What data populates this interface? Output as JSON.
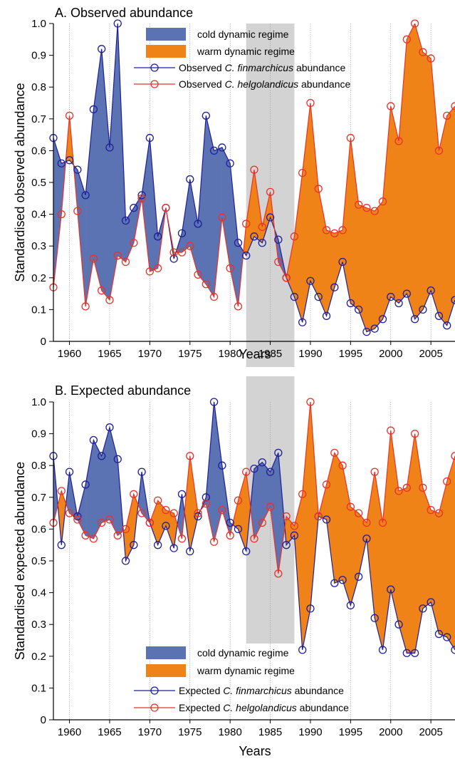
{
  "colors": {
    "cold_regime": "#5b73b3",
    "warm_regime": "#ef8318",
    "finmarchicus_line": "#1f1f9a",
    "helgolandicus_line": "#e8322a",
    "shade_band": "#d3d3d3"
  },
  "chart_data": [
    {
      "type": "area",
      "title": "A. Observed abundance",
      "xlabel": "Years",
      "ylabel": "Standardised observed abundance",
      "xlim": [
        1958,
        2008
      ],
      "ylim": [
        0,
        1
      ],
      "x_ticks": [
        "1960",
        "1965",
        "1970",
        "1975",
        "1980",
        "1985",
        "1990",
        "1995",
        "2000",
        "2005"
      ],
      "y_ticks": [
        "0",
        "0.1",
        "0.2",
        "0.3",
        "0.4",
        "0.5",
        "0.6",
        "0.7",
        "0.8",
        "0.9",
        "1.0"
      ],
      "shaded_period": [
        1982,
        1988
      ],
      "legend": {
        "position": "top-right",
        "cold_label": "cold dynamic regime",
        "warm_label": "warm dynamic regime",
        "fin_prefix": "Observed ",
        "fin_species": "C. finmarchicus",
        "fin_suffix": " abundance",
        "helg_prefix": "Observed ",
        "helg_species": "C. helgolandicus",
        "helg_suffix": " abundance"
      },
      "x": [
        1958,
        1959,
        1960,
        1961,
        1962,
        1963,
        1964,
        1965,
        1966,
        1967,
        1968,
        1969,
        1970,
        1971,
        1972,
        1973,
        1974,
        1975,
        1976,
        1977,
        1978,
        1979,
        1980,
        1981,
        1982,
        1983,
        1984,
        1985,
        1986,
        1987,
        1988,
        1989,
        1990,
        1991,
        1992,
        1993,
        1994,
        1995,
        1996,
        1997,
        1998,
        1999,
        2000,
        2001,
        2002,
        2003,
        2004,
        2005,
        2006,
        2007,
        2008
      ],
      "series": [
        {
          "name": "Observed C. finmarchicus abundance",
          "values": [
            0.64,
            0.56,
            0.57,
            0.54,
            0.46,
            0.73,
            0.92,
            0.61,
            1.0,
            0.38,
            0.42,
            0.46,
            0.64,
            0.33,
            0.42,
            0.26,
            0.34,
            0.51,
            0.37,
            0.71,
            0.6,
            0.61,
            0.56,
            0.31,
            0.27,
            0.33,
            0.31,
            0.39,
            0.32,
            0.2,
            0.14,
            0.06,
            0.19,
            0.14,
            0.08,
            0.17,
            0.25,
            0.12,
            0.1,
            0.03,
            0.04,
            0.07,
            0.14,
            0.12,
            0.15,
            0.07,
            0.1,
            0.16,
            0.08,
            0.05,
            0.13
          ]
        },
        {
          "name": "Observed C. helgolandicus abundance",
          "values": [
            0.17,
            0.4,
            0.71,
            0.41,
            0.11,
            0.26,
            0.16,
            0.13,
            0.27,
            0.25,
            0.31,
            0.45,
            0.22,
            0.23,
            0.42,
            0.28,
            0.28,
            0.3,
            0.21,
            0.18,
            0.14,
            0.39,
            0.23,
            0.11,
            0.37,
            0.54,
            0.36,
            0.47,
            0.25,
            0.2,
            0.33,
            0.53,
            0.75,
            0.48,
            0.35,
            0.34,
            0.35,
            0.64,
            0.43,
            0.42,
            0.41,
            0.44,
            0.74,
            0.63,
            0.95,
            1.0,
            0.91,
            0.89,
            0.6,
            0.71,
            0.74
          ]
        }
      ]
    },
    {
      "type": "area",
      "title": "B. Expected abundance",
      "xlabel": "Years",
      "ylabel": "Standardised expected abundance",
      "xlim": [
        1958,
        2008
      ],
      "ylim": [
        0,
        1
      ],
      "x_ticks": [
        "1960",
        "1965",
        "1970",
        "1975",
        "1980",
        "1985",
        "1990",
        "1995",
        "2000",
        "2005"
      ],
      "y_ticks": [
        "0",
        "0.1",
        "0.2",
        "0.3",
        "0.4",
        "0.5",
        "0.6",
        "0.7",
        "0.8",
        "0.9",
        "1.0"
      ],
      "shaded_period": [
        1982,
        1988
      ],
      "legend": {
        "position": "bottom-center",
        "cold_label": "cold dynamic regime",
        "warm_label": "warm dynamic regime",
        "fin_prefix": "Expected ",
        "fin_species": "C. finmarchicus",
        "fin_suffix": " abundance",
        "helg_prefix": "Expected ",
        "helg_species": "C. helgolandicus",
        "helg_suffix": " abundance"
      },
      "x": [
        1958,
        1959,
        1960,
        1961,
        1962,
        1963,
        1964,
        1965,
        1966,
        1967,
        1968,
        1969,
        1970,
        1971,
        1972,
        1973,
        1974,
        1975,
        1976,
        1977,
        1978,
        1979,
        1980,
        1981,
        1982,
        1983,
        1984,
        1985,
        1986,
        1987,
        1988,
        1989,
        1990,
        1991,
        1992,
        1993,
        1994,
        1995,
        1996,
        1997,
        1998,
        1999,
        2000,
        2001,
        2002,
        2003,
        2004,
        2005,
        2006,
        2007,
        2008
      ],
      "series": [
        {
          "name": "Expected C. finmarchicus abundance",
          "values": [
            0.83,
            0.55,
            0.78,
            0.64,
            0.74,
            0.88,
            0.83,
            0.92,
            0.82,
            0.5,
            0.55,
            0.78,
            0.62,
            0.55,
            0.61,
            0.54,
            0.71,
            0.53,
            0.64,
            0.7,
            1.0,
            0.8,
            0.62,
            0.6,
            0.53,
            0.79,
            0.81,
            0.78,
            0.84,
            0.55,
            0.58,
            0.22,
            0.35,
            0.64,
            0.63,
            0.43,
            0.44,
            0.36,
            0.45,
            0.57,
            0.32,
            0.22,
            0.41,
            0.3,
            0.21,
            0.21,
            0.35,
            0.37,
            0.27,
            0.26,
            0.22
          ]
        },
        {
          "name": "Expected C. helgolandicus abundance",
          "values": [
            0.62,
            0.72,
            0.65,
            0.63,
            0.58,
            0.57,
            0.62,
            0.63,
            0.58,
            0.6,
            0.71,
            0.65,
            0.62,
            0.69,
            0.66,
            0.65,
            0.57,
            0.83,
            0.65,
            0.68,
            0.56,
            0.66,
            0.58,
            0.69,
            0.78,
            0.57,
            0.62,
            0.67,
            0.46,
            0.64,
            0.61,
            0.71,
            1.0,
            0.64,
            0.74,
            0.84,
            0.8,
            0.67,
            0.65,
            0.62,
            0.78,
            0.62,
            0.91,
            0.72,
            0.73,
            0.9,
            0.73,
            0.66,
            0.65,
            0.75,
            0.83
          ]
        }
      ]
    }
  ]
}
